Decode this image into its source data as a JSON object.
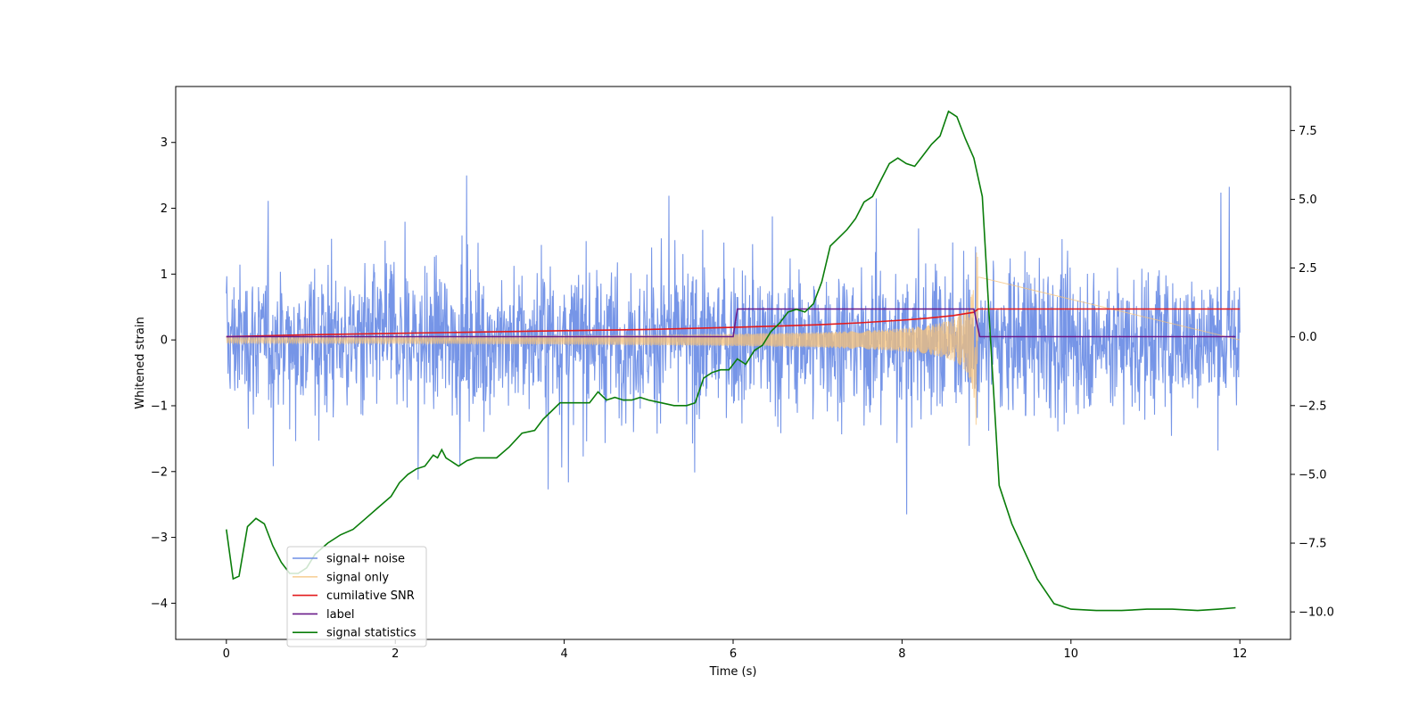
{
  "chart_data": {
    "type": "line",
    "xlabel": "Time (s)",
    "ylabel": "Whitened strain",
    "xlim": [
      -0.6,
      12.6
    ],
    "ylim": [
      -4.55,
      3.85
    ],
    "y2lim": [
      -11.0,
      9.1
    ],
    "grid": false,
    "legend_placement": "lower-left",
    "x_ticks": [
      0,
      2,
      4,
      6,
      8,
      10,
      12
    ],
    "x_tick_labels": [
      "0",
      "2",
      "4",
      "6",
      "8",
      "10",
      "12"
    ],
    "y_ticks": [
      3,
      2,
      1,
      0,
      -1,
      -2,
      -3,
      -4
    ],
    "y_tick_labels": [
      "3",
      "2",
      "1",
      "0",
      "−1",
      "−2",
      "−3",
      "−4"
    ],
    "y2_ticks": [
      7.5,
      5.0,
      2.5,
      0.0,
      -2.5,
      -5.0,
      -7.5,
      -10.0
    ],
    "y2_tick_labels": [
      "7.5",
      "5.0",
      "2.5",
      "0.0",
      "−2.5",
      "−5.0",
      "−7.5",
      "−10.0"
    ],
    "series": [
      {
        "name": "signal+ noise",
        "color": "#6f8fe6",
        "axis": "left",
        "style": "noise band, approx. ±1.5 with peaks to 3.5 and −4.2, 0–12 s"
      },
      {
        "name": "signal only",
        "color": "#f5c27a",
        "axis": "left",
        "style": "chirp rising from amplitude 0.05 at t=0 to about 1.3 at t=8.9 s, then zero",
        "envelope_peak_time": 8.9
      },
      {
        "name": "cumilative SNR",
        "color": "#e31a1c",
        "axis": "left",
        "x": [
          0,
          1,
          2,
          3,
          4,
          5,
          6,
          6.5,
          7,
          7.5,
          8,
          8.3,
          8.6,
          8.85,
          8.9,
          12
        ],
        "y": [
          0.05,
          0.08,
          0.1,
          0.12,
          0.14,
          0.16,
          0.19,
          0.21,
          0.23,
          0.26,
          0.3,
          0.33,
          0.37,
          0.42,
          0.47,
          0.47
        ]
      },
      {
        "name": "label",
        "color": "#6a1b8a",
        "axis": "left",
        "x": [
          0,
          6.0,
          6.05,
          8.85,
          8.92,
          11.95
        ],
        "y": [
          0.05,
          0.05,
          0.47,
          0.47,
          0.05,
          0.05
        ]
      },
      {
        "name": "signal statistics",
        "color": "#0a7d0a",
        "axis": "right",
        "x": [
          0,
          0.08,
          0.15,
          0.25,
          0.35,
          0.45,
          0.55,
          0.65,
          0.75,
          0.85,
          0.95,
          1.05,
          1.2,
          1.35,
          1.5,
          1.65,
          1.8,
          1.95,
          2.05,
          2.15,
          2.25,
          2.35,
          2.45,
          2.5,
          2.55,
          2.6,
          2.65,
          2.75,
          2.85,
          2.95,
          3.05,
          3.2,
          3.35,
          3.5,
          3.65,
          3.75,
          3.85,
          3.95,
          4.05,
          4.2,
          4.3,
          4.4,
          4.5,
          4.6,
          4.7,
          4.8,
          4.9,
          5.0,
          5.15,
          5.3,
          5.45,
          5.55,
          5.65,
          5.75,
          5.85,
          5.95,
          6.05,
          6.15,
          6.25,
          6.35,
          6.45,
          6.55,
          6.65,
          6.75,
          6.85,
          6.95,
          7.05,
          7.15,
          7.25,
          7.35,
          7.45,
          7.55,
          7.65,
          7.75,
          7.85,
          7.95,
          8.05,
          8.15,
          8.25,
          8.35,
          8.45,
          8.55,
          8.65,
          8.75,
          8.85,
          8.95,
          9.05,
          9.15,
          9.3,
          9.45,
          9.6,
          9.8,
          10.0,
          10.3,
          10.6,
          10.9,
          11.2,
          11.5,
          11.75,
          11.95
        ],
        "y": [
          -7.0,
          -8.8,
          -8.7,
          -6.9,
          -6.6,
          -6.8,
          -7.6,
          -8.2,
          -8.6,
          -8.6,
          -8.4,
          -7.9,
          -7.5,
          -7.2,
          -7.0,
          -6.6,
          -6.2,
          -5.8,
          -5.3,
          -5.0,
          -4.8,
          -4.7,
          -4.3,
          -4.4,
          -4.1,
          -4.4,
          -4.5,
          -4.7,
          -4.5,
          -4.4,
          -4.4,
          -4.4,
          -4.0,
          -3.5,
          -3.4,
          -3.0,
          -2.7,
          -2.4,
          -2.4,
          -2.4,
          -2.4,
          -2.0,
          -2.3,
          -2.2,
          -2.3,
          -2.3,
          -2.2,
          -2.3,
          -2.4,
          -2.5,
          -2.5,
          -2.4,
          -1.5,
          -1.3,
          -1.2,
          -1.2,
          -0.8,
          -1.0,
          -0.5,
          -0.3,
          0.2,
          0.5,
          0.9,
          1.0,
          0.9,
          1.2,
          2.0,
          3.3,
          3.6,
          3.9,
          4.3,
          4.9,
          5.1,
          5.7,
          6.3,
          6.5,
          6.3,
          6.2,
          6.6,
          7.0,
          7.3,
          8.2,
          8.0,
          7.2,
          6.5,
          5.1,
          -0.2,
          -5.4,
          -6.8,
          -7.8,
          -8.8,
          -9.7,
          -9.9,
          -9.95,
          -9.95,
          -9.9,
          -9.9,
          -9.95,
          -9.9,
          -9.85
        ]
      }
    ]
  }
}
